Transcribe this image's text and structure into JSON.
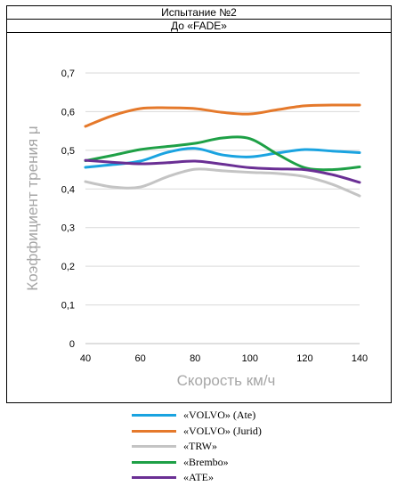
{
  "header": {
    "title": "Испытание №2",
    "subtitle": "До «FADE»"
  },
  "chart_data": {
    "type": "line",
    "xlabel": "Скорость км/ч",
    "ylabel": "Коэффициент трения μ",
    "xlim": [
      40,
      140
    ],
    "ylim": [
      0,
      0.7
    ],
    "x_ticks": [
      "40",
      "60",
      "80",
      "100",
      "120",
      "140"
    ],
    "y_ticks": [
      "0",
      "0,1",
      "0,2",
      "0,3",
      "0,4",
      "0,5",
      "0,6",
      "0,7"
    ],
    "grid": "horizontal",
    "legend_position": "bottom",
    "series": [
      {
        "name": "«VOLVO» (Ate)",
        "color": "#1aa3e0",
        "x": [
          40,
          50,
          60,
          70,
          80,
          90,
          100,
          110,
          120,
          130,
          140
        ],
        "y": [
          0.456,
          0.463,
          0.472,
          0.495,
          0.505,
          0.488,
          0.483,
          0.493,
          0.502,
          0.498,
          0.494
        ]
      },
      {
        "name": "«VOLVO» (Jurid)",
        "color": "#e5792b",
        "x": [
          40,
          50,
          60,
          70,
          80,
          90,
          100,
          110,
          120,
          130,
          140
        ],
        "y": [
          0.562,
          0.59,
          0.608,
          0.61,
          0.608,
          0.598,
          0.594,
          0.605,
          0.615,
          0.617,
          0.617
        ]
      },
      {
        "name": "«TRW»",
        "color": "#c4c4c4",
        "x": [
          40,
          50,
          60,
          70,
          80,
          90,
          100,
          110,
          120,
          130,
          140
        ],
        "y": [
          0.419,
          0.405,
          0.405,
          0.432,
          0.451,
          0.447,
          0.443,
          0.44,
          0.432,
          0.412,
          0.382
        ]
      },
      {
        "name": "«Brembo»",
        "color": "#1ea046",
        "x": [
          40,
          50,
          60,
          70,
          80,
          90,
          100,
          110,
          120,
          130,
          140
        ],
        "y": [
          0.473,
          0.487,
          0.502,
          0.51,
          0.518,
          0.532,
          0.53,
          0.49,
          0.455,
          0.45,
          0.457
        ]
      },
      {
        "name": "«ATE»",
        "color": "#6a2f94",
        "x": [
          40,
          50,
          60,
          70,
          80,
          90,
          100,
          110,
          120,
          130,
          140
        ],
        "y": [
          0.474,
          0.469,
          0.465,
          0.468,
          0.472,
          0.464,
          0.455,
          0.452,
          0.45,
          0.437,
          0.417
        ]
      }
    ]
  }
}
